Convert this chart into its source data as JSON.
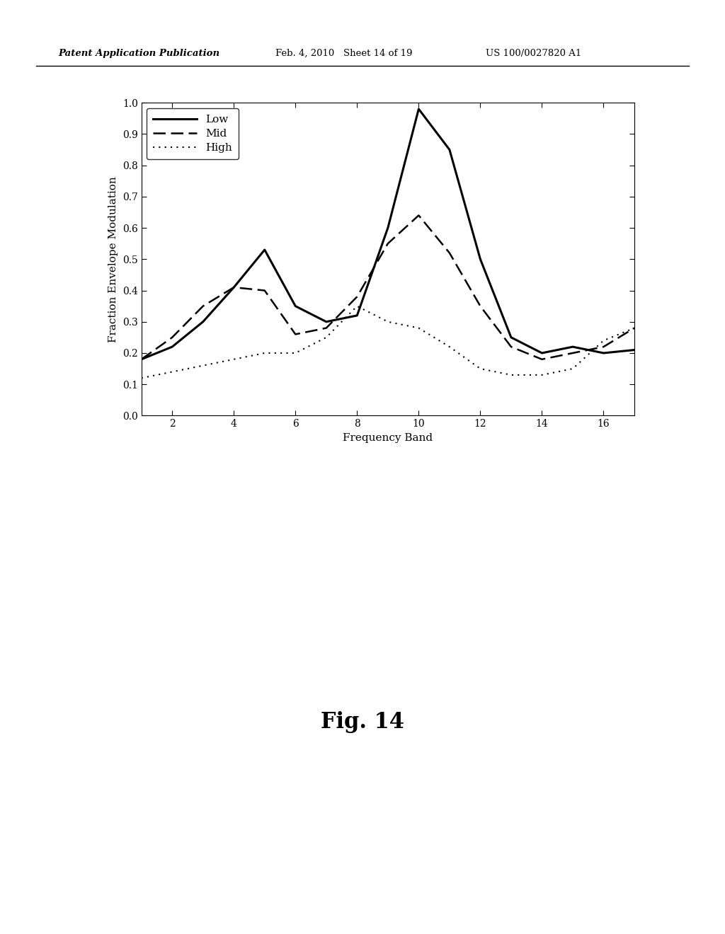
{
  "x": [
    1,
    2,
    3,
    4,
    5,
    6,
    7,
    8,
    9,
    10,
    11,
    12,
    13,
    14,
    15,
    16,
    17
  ],
  "low": [
    0.18,
    0.22,
    0.3,
    0.41,
    0.53,
    0.35,
    0.3,
    0.32,
    0.6,
    0.98,
    0.85,
    0.5,
    0.25,
    0.2,
    0.22,
    0.2,
    0.21
  ],
  "mid": [
    0.18,
    0.25,
    0.35,
    0.41,
    0.4,
    0.26,
    0.28,
    0.38,
    0.55,
    0.64,
    0.52,
    0.35,
    0.22,
    0.18,
    0.2,
    0.22,
    0.28
  ],
  "high": [
    0.12,
    0.14,
    0.16,
    0.18,
    0.2,
    0.2,
    0.25,
    0.35,
    0.3,
    0.28,
    0.22,
    0.15,
    0.13,
    0.13,
    0.15,
    0.24,
    0.28
  ],
  "xlabel": "Frequency Band",
  "ylabel": "Fraction Envelope Modulation",
  "xlim": [
    1,
    17
  ],
  "ylim": [
    0,
    1
  ],
  "xticks": [
    2,
    4,
    6,
    8,
    10,
    12,
    14,
    16
  ],
  "yticks": [
    0,
    0.1,
    0.2,
    0.3,
    0.4,
    0.5,
    0.6,
    0.7,
    0.8,
    0.9,
    1
  ],
  "legend_labels": [
    "Low",
    "Mid",
    "High"
  ],
  "fig_caption": "Fig. 14",
  "header_left": "Patent Application Publication",
  "header_mid": "Feb. 4, 2010   Sheet 14 of 19",
  "header_right": "US 100/0027820 A1",
  "header_right_correct": "US 100/0027820 A1"
}
